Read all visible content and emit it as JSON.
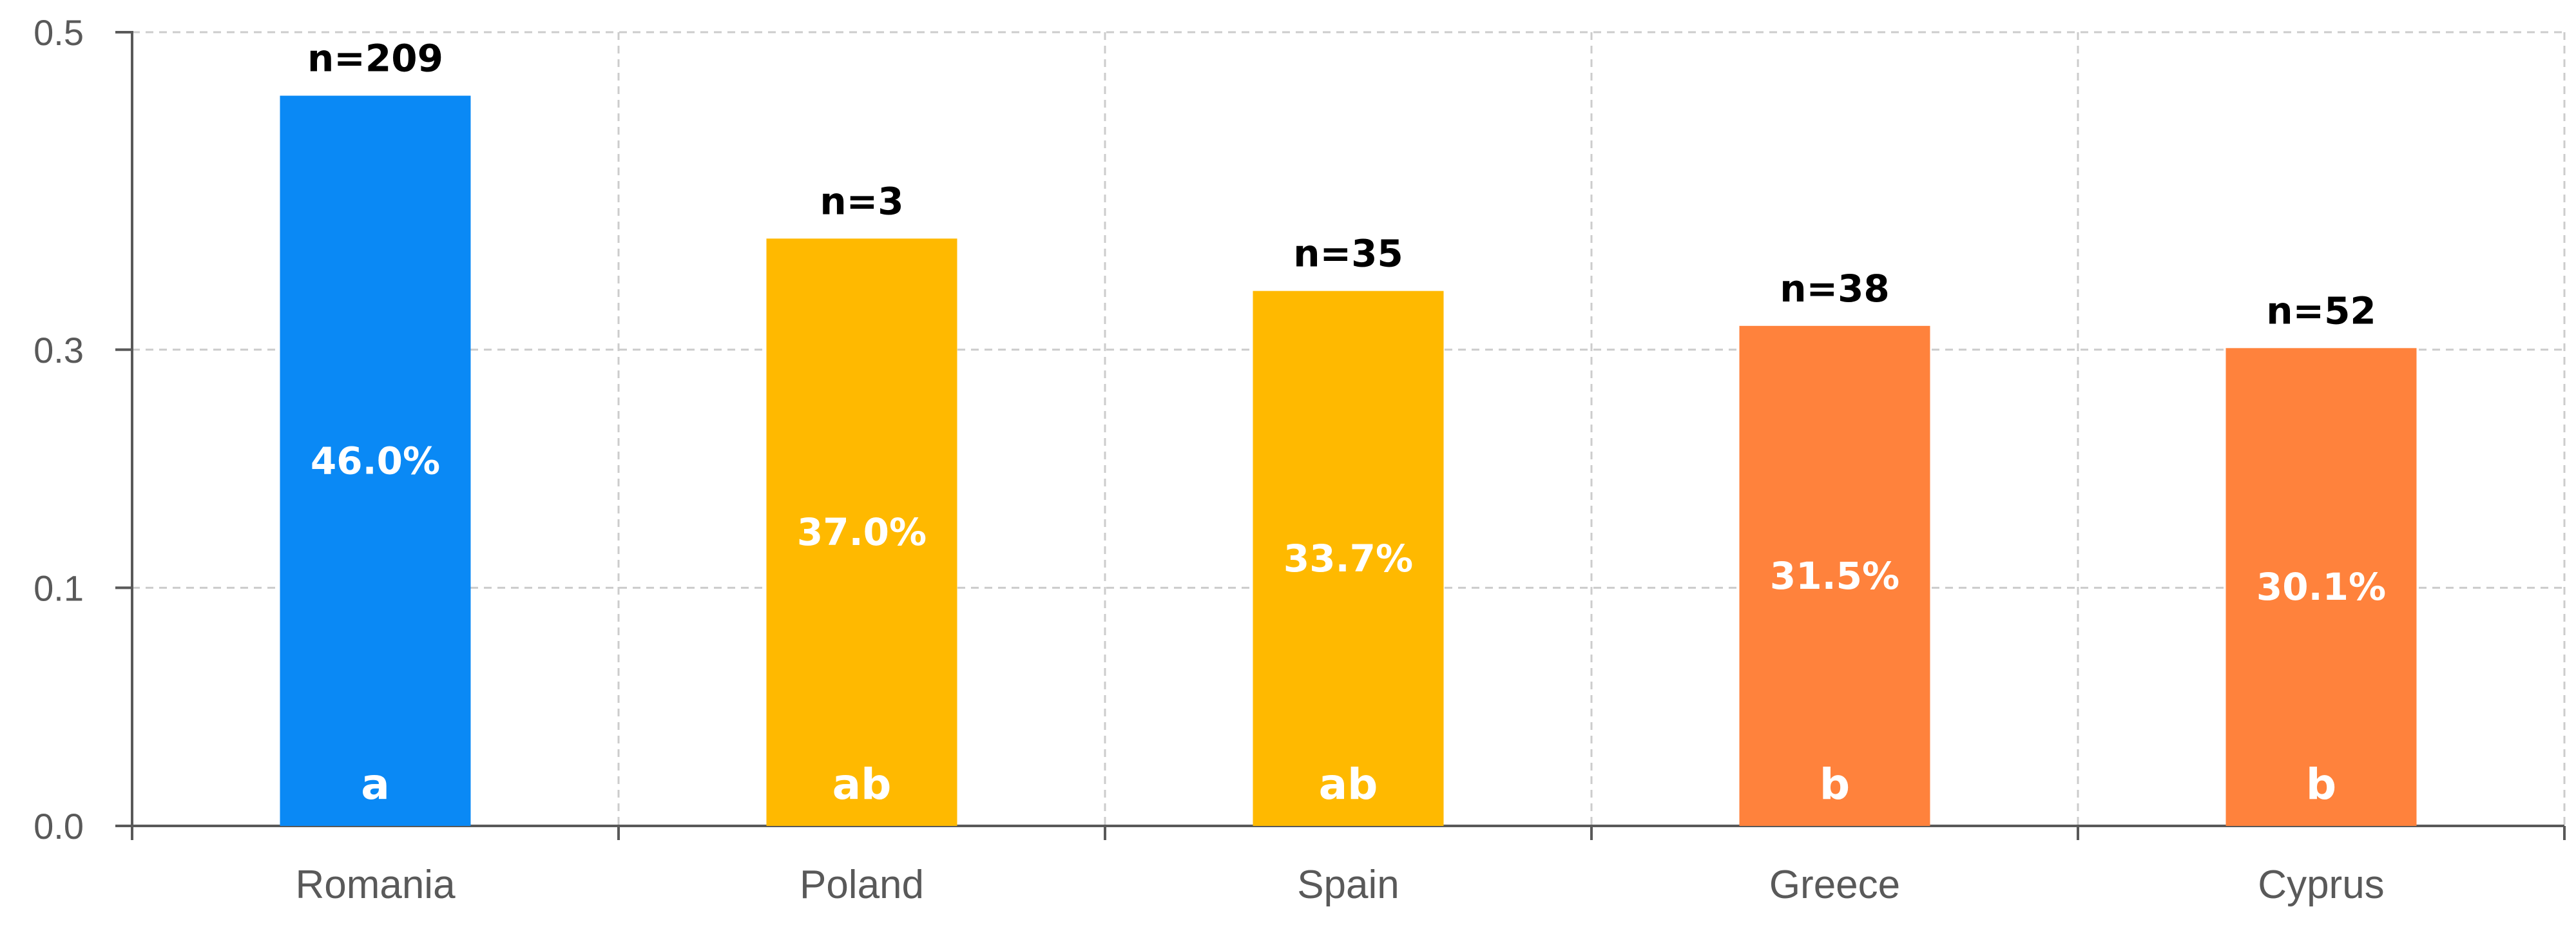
{
  "chart_data": {
    "type": "bar",
    "categories": [
      "Romania",
      "Poland",
      "Spain",
      "Greece",
      "Cyprus"
    ],
    "values": [
      0.46,
      0.37,
      0.337,
      0.315,
      0.301
    ],
    "value_labels": [
      "46.0%",
      "37.0%",
      "33.7%",
      "31.5%",
      "30.1%"
    ],
    "n_labels": [
      "n=209",
      "n=3",
      "n=35",
      "n=38",
      "n=52"
    ],
    "group_labels": [
      "a",
      "ab",
      "ab",
      "b",
      "b"
    ],
    "bar_colors": [
      "#0A89F5",
      "#FFB900",
      "#FFB900",
      "#FF823C",
      "#FF823C"
    ],
    "y_ticks": [
      0.0,
      0.1,
      0.3,
      0.5
    ],
    "y_tick_labels": [
      "0.0",
      "0.1",
      "0.3",
      "0.5"
    ],
    "ylim": [
      0,
      0.5
    ],
    "grid": true,
    "grid_color": "#cccccc",
    "axis_color": "#595959",
    "title": "",
    "xlabel": "",
    "ylabel": ""
  }
}
